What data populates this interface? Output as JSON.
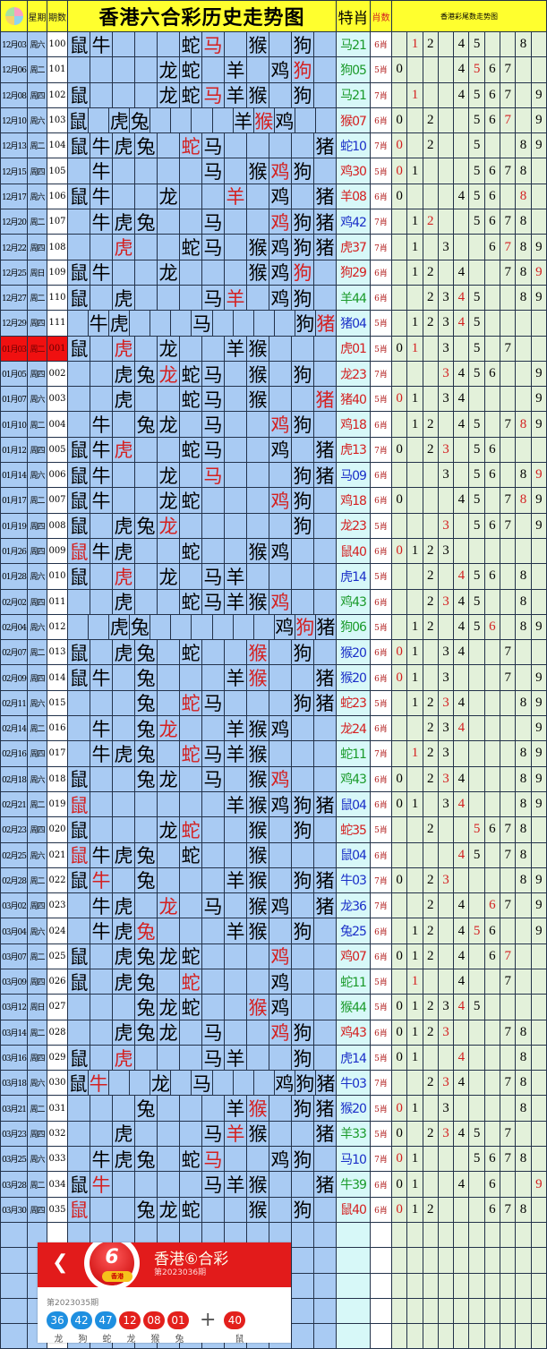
{
  "header": {
    "weekday_label": "星期",
    "period_label": "期数",
    "title": "香港六合彩历史走势图",
    "special_label": "特肖",
    "count_label": "肖数",
    "tail_title": "香港彩尾数走势图"
  },
  "colors": {
    "header_bg": "#ffff2e",
    "highlight": "#d42020",
    "green": "#1a9a2a",
    "red": "#d42020",
    "blue": "#1a2fc8",
    "current_row": "#f01010"
  },
  "zodiac_order": [
    "鼠",
    "牛",
    "虎",
    "兔",
    "龙",
    "蛇",
    "马",
    "羊",
    "猴",
    "鸡",
    "狗",
    "猪"
  ],
  "rows": [
    {
      "date": "12月03",
      "wd": "周六",
      "no": "100",
      "z": "鼠牛...蛇马.猴.狗.",
      "sp": "马21",
      "c": "g",
      "cnt": "6肖",
      "t": ".12.45..8."
    },
    {
      "date": "12月06",
      "wd": "周二",
      "no": "101",
      "z": "....龙蛇.羊.鸡狗.",
      "sp": "狗05",
      "c": "g",
      "cnt": "5肖",
      "t": "0...4567.."
    },
    {
      "date": "12月08",
      "wd": "周四",
      "no": "102",
      "z": "鼠...龙蛇马羊猴.狗.",
      "sp": "马21",
      "c": "g",
      "cnt": "7肖",
      "t": ".1..4567.9"
    },
    {
      "date": "12月10",
      "wd": "周六",
      "no": "103",
      "z": "鼠.虎兔....羊猴鸡..",
      "sp": "猴07",
      "c": "r",
      "cnt": "6肖",
      "t": "0.2..567.9"
    },
    {
      "date": "12月13",
      "wd": "周二",
      "no": "104",
      "z": "鼠牛虎兔.蛇马....猪",
      "sp": "蛇10",
      "c": "b",
      "cnt": "7肖",
      "t": "0.2..5..89"
    },
    {
      "date": "12月15",
      "wd": "周四",
      "no": "105",
      "z": ".牛....马.猴鸡狗.",
      "sp": "鸡30",
      "c": "r",
      "cnt": "5肖",
      "t": "01...5678."
    },
    {
      "date": "12月17",
      "wd": "周六",
      "no": "106",
      "z": "鼠牛..龙..羊.鸡.猪",
      "sp": "羊08",
      "c": "r",
      "cnt": "6肖",
      "t": "0...456.8."
    },
    {
      "date": "12月20",
      "wd": "周二",
      "no": "107",
      "z": ".牛虎兔..马..鸡狗猪",
      "sp": "鸡42",
      "c": "b",
      "cnt": "7肖",
      "t": ".12..5678."
    },
    {
      "date": "12月22",
      "wd": "周四",
      "no": "108",
      "z": "..虎..蛇马.猴鸡狗猪",
      "sp": "虎37",
      "c": "r",
      "cnt": "7肖",
      "t": ".1.3..6789"
    },
    {
      "date": "12月25",
      "wd": "周日",
      "no": "109",
      "z": "鼠牛..龙...猴鸡狗.",
      "sp": "狗29",
      "c": "r",
      "cnt": "6肖",
      "t": ".12.4..789"
    },
    {
      "date": "12月27",
      "wd": "周二",
      "no": "110",
      "z": "鼠.虎...马羊.鸡狗.",
      "sp": "羊44",
      "c": "g",
      "cnt": "6肖",
      "t": "..2345..89"
    },
    {
      "date": "12月29",
      "wd": "周四",
      "no": "111",
      "z": ".牛虎...马....狗猪",
      "sp": "猪04",
      "c": "b",
      "cnt": "5肖",
      "t": ".12345...."
    },
    {
      "date": "01月03",
      "wd": "周二",
      "no": "001",
      "z": "鼠.虎.龙..羊猴...",
      "sp": "虎01",
      "c": "r",
      "cnt": "5肖",
      "t": "01.3.5.7..",
      "current": true
    },
    {
      "date": "01月05",
      "wd": "周四",
      "no": "002",
      "z": "..虎兔龙蛇马.猴.狗.",
      "sp": "龙23",
      "c": "r",
      "cnt": "7肖",
      "t": "...3456..9"
    },
    {
      "date": "01月07",
      "wd": "周六",
      "no": "003",
      "z": "..虎..蛇马.猴..猪",
      "sp": "猪40",
      "c": "r",
      "cnt": "5肖",
      "t": "01.34....9"
    },
    {
      "date": "01月10",
      "wd": "周二",
      "no": "004",
      "z": ".牛.兔龙.马..鸡狗.",
      "sp": "鸡18",
      "c": "r",
      "cnt": "6肖",
      "t": ".12.45.789"
    },
    {
      "date": "01月12",
      "wd": "周四",
      "no": "005",
      "z": "鼠牛虎..蛇马..鸡.猪",
      "sp": "虎13",
      "c": "r",
      "cnt": "7肖",
      "t": "0.23.56..."
    },
    {
      "date": "01月14",
      "wd": "周六",
      "no": "006",
      "z": "鼠牛..龙.马...狗猪",
      "sp": "马09",
      "c": "b",
      "cnt": "6肖",
      "t": "...3.56.89"
    },
    {
      "date": "01月17",
      "wd": "周二",
      "no": "007",
      "z": "鼠牛..龙蛇...鸡狗.",
      "sp": "鸡18",
      "c": "r",
      "cnt": "6肖",
      "t": "0...45.789"
    },
    {
      "date": "01月19",
      "wd": "周四",
      "no": "008",
      "z": "鼠.虎兔龙.....狗.",
      "sp": "龙23",
      "c": "r",
      "cnt": "5肖",
      "t": "...3.567.9"
    },
    {
      "date": "01月26",
      "wd": "周四",
      "no": "009",
      "z": "鼠牛虎..蛇..猴鸡..",
      "sp": "鼠40",
      "c": "r",
      "cnt": "6肖",
      "t": "0123......"
    },
    {
      "date": "01月28",
      "wd": "周六",
      "no": "010",
      "z": "鼠.虎.龙.马羊....",
      "sp": "虎14",
      "c": "b",
      "cnt": "5肖",
      "t": "..2.456.8."
    },
    {
      "date": "02月02",
      "wd": "周四",
      "no": "011",
      "z": "..虎..蛇马羊猴鸡..",
      "sp": "鸡43",
      "c": "g",
      "cnt": "6肖",
      "t": "..2345..8."
    },
    {
      "date": "02月04",
      "wd": "周六",
      "no": "012",
      "z": "..虎兔......鸡狗猪",
      "sp": "狗06",
      "c": "g",
      "cnt": "5肖",
      "t": ".12.456.89"
    },
    {
      "date": "02月07",
      "wd": "周二",
      "no": "013",
      "z": "鼠.虎兔.蛇..猴.狗.",
      "sp": "猴20",
      "c": "b",
      "cnt": "6肖",
      "t": "01.34..7.."
    },
    {
      "date": "02月09",
      "wd": "周四",
      "no": "014",
      "z": "鼠牛.兔...羊猴..猪",
      "sp": "猴20",
      "c": "b",
      "cnt": "6肖",
      "t": "01.3...7.9"
    },
    {
      "date": "02月11",
      "wd": "周六",
      "no": "015",
      "z": "...兔.蛇马...狗猪",
      "sp": "蛇23",
      "c": "r",
      "cnt": "5肖",
      "t": ".1234...89"
    },
    {
      "date": "02月14",
      "wd": "周二",
      "no": "016",
      "z": ".牛.兔龙..羊猴鸡..",
      "sp": "龙24",
      "c": "r",
      "cnt": "6肖",
      "t": "..234....9"
    },
    {
      "date": "02月16",
      "wd": "周四",
      "no": "017",
      "z": ".牛虎兔.蛇马羊猴...",
      "sp": "蛇11",
      "c": "g",
      "cnt": "7肖",
      "t": ".123....89"
    },
    {
      "date": "02月18",
      "wd": "周六",
      "no": "018",
      "z": "鼠..兔龙.马.猴鸡..",
      "sp": "鸡43",
      "c": "g",
      "cnt": "6肖",
      "t": "0.234...89"
    },
    {
      "date": "02月21",
      "wd": "周二",
      "no": "019",
      "z": "鼠......羊猴鸡狗猪",
      "sp": "鼠04",
      "c": "b",
      "cnt": "6肖",
      "t": "01.34...89"
    },
    {
      "date": "02月23",
      "wd": "周四",
      "no": "020",
      "z": "鼠...龙蛇..猴.狗.",
      "sp": "蛇35",
      "c": "r",
      "cnt": "5肖",
      "t": "..2..5678."
    },
    {
      "date": "02月25",
      "wd": "周六",
      "no": "021",
      "z": "鼠牛虎兔.蛇..猴...",
      "sp": "鼠04",
      "c": "b",
      "cnt": "6肖",
      "t": "....45.78."
    },
    {
      "date": "02月28",
      "wd": "周二",
      "no": "022",
      "z": "鼠牛.兔...羊猴.狗猪",
      "sp": "牛03",
      "c": "b",
      "cnt": "7肖",
      "t": "0.23....89"
    },
    {
      "date": "03月02",
      "wd": "周四",
      "no": "023",
      "z": ".牛虎.龙.马.猴鸡.猪",
      "sp": "龙36",
      "c": "b",
      "cnt": "7肖",
      "t": "..2.4.67.9"
    },
    {
      "date": "03月04",
      "wd": "周六",
      "no": "024",
      "z": ".牛虎兔...羊猴.狗.",
      "sp": "兔25",
      "c": "b",
      "cnt": "6肖",
      "t": ".12.456..9"
    },
    {
      "date": "03月07",
      "wd": "周二",
      "no": "025",
      "z": "鼠.虎兔龙蛇...鸡..",
      "sp": "鸡07",
      "c": "r",
      "cnt": "6肖",
      "t": "012.4.67.."
    },
    {
      "date": "03月09",
      "wd": "周四",
      "no": "026",
      "z": "鼠.虎兔.蛇...鸡..",
      "sp": "蛇11",
      "c": "g",
      "cnt": "5肖",
      "t": ".1..4..7.."
    },
    {
      "date": "03月12",
      "wd": "周日",
      "no": "027",
      "z": "...兔龙蛇..猴鸡..",
      "sp": "猴44",
      "c": "g",
      "cnt": "5肖",
      "t": "012345...."
    },
    {
      "date": "03月14",
      "wd": "周二",
      "no": "028",
      "z": "..虎兔龙.马..鸡狗.",
      "sp": "鸡43",
      "c": "r",
      "cnt": "6肖",
      "t": "0123...78."
    },
    {
      "date": "03月16",
      "wd": "周四",
      "no": "029",
      "z": "鼠.虎...马羊..狗.",
      "sp": "虎14",
      "c": "b",
      "cnt": "5肖",
      "t": "01..4...8."
    },
    {
      "date": "03月18",
      "wd": "周六",
      "no": "030",
      "z": "鼠牛..龙.马...鸡狗猪",
      "sp": "牛03",
      "c": "b",
      "cnt": "7肖",
      "t": "..234..78."
    },
    {
      "date": "03月21",
      "wd": "周二",
      "no": "031",
      "z": "...兔...羊猴.狗猪",
      "sp": "猴20",
      "c": "b",
      "cnt": "5肖",
      "t": "01.3....8."
    },
    {
      "date": "03月23",
      "wd": "周四",
      "no": "032",
      "z": "..虎...马羊猴..猪",
      "sp": "羊33",
      "c": "g",
      "cnt": "5肖",
      "t": "0.2345.7.."
    },
    {
      "date": "03月25",
      "wd": "周六",
      "no": "033",
      "z": ".牛虎兔.蛇马..鸡狗.",
      "sp": "马10",
      "c": "b",
      "cnt": "7肖",
      "t": "01...5678."
    },
    {
      "date": "03月28",
      "wd": "周二",
      "no": "034",
      "z": "鼠牛....马羊猴..猪",
      "sp": "牛39",
      "c": "g",
      "cnt": "6肖",
      "t": "01..4.6..9"
    },
    {
      "date": "03月30",
      "wd": "周四",
      "no": "035",
      "z": "鼠..兔龙蛇..猴.狗.",
      "sp": "鼠40",
      "c": "r",
      "cnt": "6肖",
      "t": "012...678."
    }
  ],
  "card": {
    "back_icon": "chevron-left",
    "logo_number": "6",
    "logo_text": "香港",
    "title": "香港⑥合彩",
    "next_period": "第2023036期",
    "prev_period": "第2023035期",
    "balls": [
      {
        "num": "36",
        "color": "#1e8fe0",
        "zodiac": "龙"
      },
      {
        "num": "42",
        "color": "#1e8fe0",
        "zodiac": "狗"
      },
      {
        "num": "47",
        "color": "#1e8fe0",
        "zodiac": "蛇"
      },
      {
        "num": "12",
        "color": "#e3201c",
        "zodiac": "龙"
      },
      {
        "num": "08",
        "color": "#e3201c",
        "zodiac": "猴"
      },
      {
        "num": "01",
        "color": "#e3201c",
        "zodiac": "兔"
      }
    ],
    "plus": "+",
    "special_ball": {
      "num": "40",
      "color": "#e3201c",
      "zodiac": "鼠"
    }
  }
}
